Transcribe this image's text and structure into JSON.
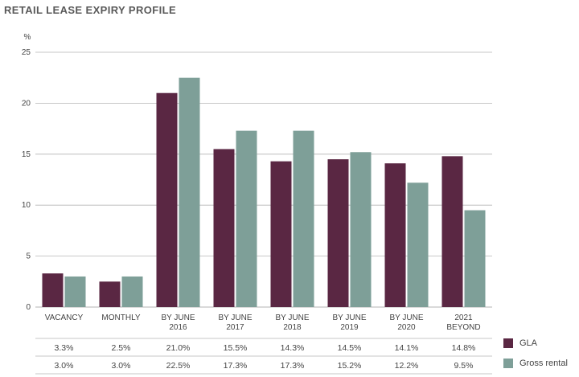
{
  "title": "RETAIL LEASE EXPIRY PROFILE",
  "chart_data": {
    "type": "bar",
    "ylabel": "%",
    "ylim": [
      0,
      25
    ],
    "yticks": [
      0,
      5,
      10,
      15,
      20,
      25
    ],
    "grid": true,
    "legend_position": "bottom-right",
    "categories": [
      [
        "VACANCY"
      ],
      [
        "MONTHLY"
      ],
      [
        "BY JUNE",
        "2016"
      ],
      [
        "BY JUNE",
        "2017"
      ],
      [
        "BY JUNE",
        "2018"
      ],
      [
        "BY JUNE",
        "2019"
      ],
      [
        "BY JUNE",
        "2020"
      ],
      [
        "2021",
        "BEYOND"
      ]
    ],
    "series": [
      {
        "name": "GLA",
        "color": "#5a2743",
        "values": [
          3.3,
          2.5,
          21.0,
          15.5,
          14.3,
          14.5,
          14.1,
          14.8
        ],
        "labels": [
          "3.3%",
          "2.5%",
          "21.0%",
          "15.5%",
          "14.3%",
          "14.5%",
          "14.1%",
          "14.8%"
        ]
      },
      {
        "name": "Gross rental",
        "color": "#7e9f98",
        "values": [
          3.0,
          3.0,
          22.5,
          17.3,
          17.3,
          15.2,
          12.2,
          9.5
        ],
        "labels": [
          "3.0%",
          "3.0%",
          "22.5%",
          "17.3%",
          "17.3%",
          "15.2%",
          "12.2%",
          "9.5%"
        ]
      }
    ]
  }
}
